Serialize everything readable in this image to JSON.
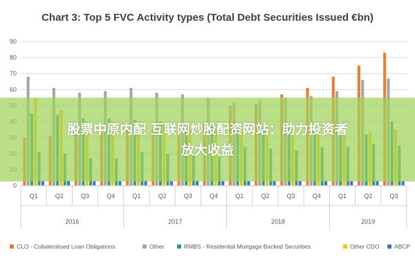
{
  "chart_data": {
    "type": "bar",
    "title": "Chart 3: Top 5 FVC Activity types (Total Debt Securities Issued €bn)",
    "xlabel": "",
    "ylabel": "",
    "ylim": [
      0,
      90
    ],
    "yticks": [
      0,
      10,
      20,
      30,
      40,
      50,
      60,
      70,
      80,
      90
    ],
    "grid": true,
    "legend_position": "bottom",
    "categories": [
      "Q1",
      "Q2",
      "Q3",
      "Q4",
      "Q1",
      "Q2",
      "Q3",
      "Q4",
      "Q1",
      "Q2",
      "Q3",
      "Q4",
      "Q1",
      "Q2",
      "Q3"
    ],
    "years": [
      {
        "label": "2016",
        "span": 4
      },
      {
        "label": "2017",
        "span": 4
      },
      {
        "label": "2018",
        "span": 4
      },
      {
        "label": "2019",
        "span": 3
      }
    ],
    "series": [
      {
        "name": "CLO - Collateralised Loan Obligations",
        "color": "#ED7D31",
        "values": [
          30,
          31,
          32,
          33,
          35,
          35,
          37,
          39,
          50,
          51,
          57,
          61,
          68,
          75,
          83
        ]
      },
      {
        "name": "Other",
        "color": "#A5A5A5",
        "values": [
          68,
          61,
          58,
          59,
          61,
          58,
          57,
          55,
          52,
          53,
          55,
          56,
          59,
          66,
          67
        ]
      },
      {
        "name": "RMBS - Residential Mortgage Backed Securities",
        "color": "#2E9B8F",
        "values": [
          45,
          44,
          42,
          42,
          41,
          40,
          38,
          37,
          36,
          36,
          36,
          34,
          33,
          32,
          40
        ]
      },
      {
        "name": "Other CDO",
        "color": "#FFC000",
        "values": [
          55,
          47,
          40,
          40,
          40,
          38,
          37,
          35,
          33,
          34,
          33,
          33,
          34,
          34,
          35
        ]
      },
      {
        "name": "ABCP",
        "color": "#4472C4",
        "values": [
          3,
          3,
          3,
          3,
          3,
          3,
          3,
          3,
          3,
          3,
          3,
          3,
          3,
          3,
          3
        ]
      }
    ],
    "extra_bar": {
      "name": "RMBS - Residential Mortgage Backed Securities",
      "color": "#2E9B8F",
      "values": [
        21,
        20,
        17,
        17,
        21,
        20,
        19,
        18,
        24,
        23,
        22,
        24,
        24,
        26,
        25
      ]
    }
  },
  "overlay": {
    "line1": "股票中原内配 互联网炒股配资网站：助力投资者",
    "line2": "放大收益"
  }
}
